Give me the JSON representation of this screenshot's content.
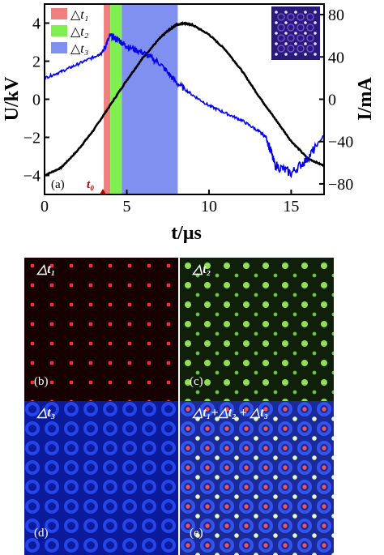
{
  "chart_data": {
    "type": "line",
    "panel_label": "(a)",
    "xlabel": "t/μs",
    "ylabel_left": "U/kV",
    "ylabel_right": "I/mA",
    "xlim": [
      0,
      17
    ],
    "ylim_left": [
      -5,
      5
    ],
    "ylim_right": [
      -90,
      90
    ],
    "xticks": [
      0,
      5,
      10,
      15
    ],
    "yticks_left": [
      4,
      2,
      0,
      -2,
      -4
    ],
    "yticks_right": [
      80,
      40,
      0,
      -40,
      -80
    ],
    "t0_label": "t₀",
    "t0": 3.6,
    "legend": [
      "△t₁",
      "△t₂",
      "△t₃"
    ],
    "shaded_intervals": [
      {
        "name": "△t₁",
        "start": 3.6,
        "end": 4.0,
        "color": "#f08080"
      },
      {
        "name": "△t₂",
        "start": 4.0,
        "end": 4.7,
        "color": "#80f050"
      },
      {
        "name": "△t₃",
        "start": 4.7,
        "end": 8.1,
        "color": "#8090f0"
      }
    ],
    "series": [
      {
        "axis": "left",
        "color": "#000000",
        "x": [
          0,
          1,
          2,
          3,
          4,
          5,
          6,
          7,
          7.5,
          8,
          8.5,
          9,
          10,
          11,
          12,
          13,
          14,
          15,
          16,
          17
        ],
        "y": [
          -4.0,
          -3.6,
          -2.7,
          -1.6,
          -0.3,
          1.0,
          2.2,
          3.2,
          3.6,
          3.9,
          4.0,
          3.9,
          3.4,
          2.6,
          1.5,
          0.2,
          -1.0,
          -2.2,
          -3.1,
          -3.5
        ]
      },
      {
        "axis": "right",
        "color": "#0000ee",
        "x": [
          0,
          1,
          2,
          3,
          3.5,
          4,
          4.5,
          5,
          6,
          7,
          8,
          9,
          10,
          11,
          12,
          13,
          13.5,
          14,
          15,
          16,
          17
        ],
        "y": [
          20,
          26,
          33,
          40,
          44,
          60,
          56,
          50,
          44,
          34,
          16,
          4,
          -6,
          -13,
          -20,
          -30,
          -36,
          -62,
          -70,
          -56,
          -34
        ]
      }
    ]
  },
  "panels": [
    {
      "label": "(b)",
      "interval": "△t₁",
      "color": "red"
    },
    {
      "label": "(c)",
      "interval": "△t₂",
      "color": "green"
    },
    {
      "label": "(d)",
      "interval": "△t₃",
      "color": "blue"
    },
    {
      "label": "(e)",
      "interval": "△t₁+△t₂ + △t₃",
      "color": "combined"
    }
  ]
}
